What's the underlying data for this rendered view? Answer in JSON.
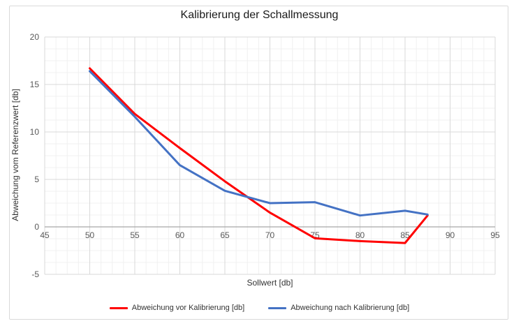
{
  "chart_data": {
    "type": "line",
    "title": "Kalibrierung der Schallmessung",
    "xlabel": "Sollwert [db]",
    "ylabel": "Abweichung vom Referenzwert [db]",
    "xlim": [
      45,
      95
    ],
    "ylim": [
      -5,
      20
    ],
    "x_ticks": [
      45,
      50,
      55,
      60,
      65,
      70,
      75,
      80,
      85,
      90,
      95
    ],
    "y_ticks": [
      20,
      15,
      10,
      5,
      0,
      -5
    ],
    "minor_grid_step": 1.25,
    "grid": "major+minor",
    "legend_position": "bottom",
    "x": [
      50,
      55,
      60,
      65,
      70,
      75,
      80,
      85,
      87.5
    ],
    "series": [
      {
        "name": "Abweichung vor Kalibrierung [db]",
        "color": "#FF0000",
        "values": [
          16.7,
          11.9,
          8.3,
          4.8,
          1.5,
          -1.2,
          -1.5,
          -1.7,
          1.2
        ]
      },
      {
        "name": "Abweichung nach Kalibrierung [db]",
        "color": "#4472C4",
        "values": [
          16.4,
          11.6,
          6.5,
          3.8,
          2.5,
          2.6,
          1.2,
          1.7,
          1.3
        ]
      }
    ]
  },
  "colors": {
    "grid_major": "#D9D9D9",
    "grid_minor": "#F0F0F0",
    "axis_zero_line": "#A6A6A6",
    "tick_label": "#595959",
    "axis_title": "#333333",
    "title": "#1A1A1A",
    "chart_border": "#D9D9D9",
    "background": "#FFFFFF"
  }
}
